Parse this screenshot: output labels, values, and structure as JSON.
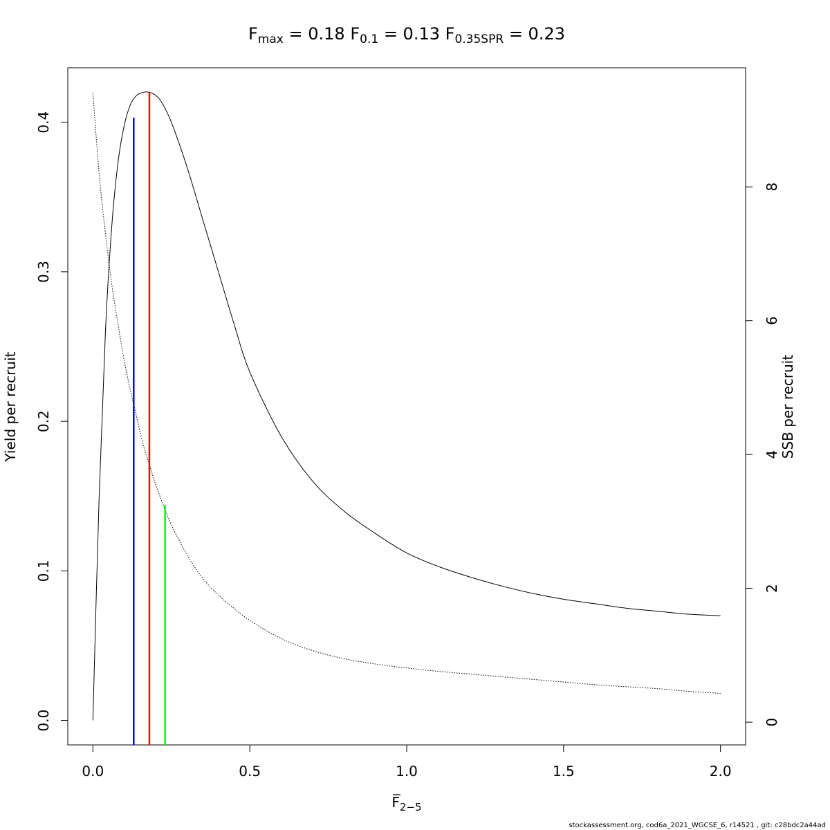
{
  "title": {
    "fmax": {
      "symbol": "F",
      "sub": "max",
      "value": "= 0.18"
    },
    "f01": {
      "symbol": "F",
      "sub": "0.1",
      "value": "= 0.13"
    },
    "fspr": {
      "symbol": "F",
      "sub": "0.35SPR",
      "value": "= 0.23"
    }
  },
  "footer": "stockassessment.org, cod6a_2021_WGCSE_6, r14521 , git: c28bdc2a44ad",
  "chart_data": {
    "type": "line",
    "xlabel": {
      "symbol": "F",
      "sub": "2−5"
    },
    "ylabel": "Yield per recruit",
    "y2label": "SSB per recruit",
    "xlim": [
      -0.08,
      2.08
    ],
    "ylim": [
      -0.0164,
      0.4364
    ],
    "y2lim": [
      -0.34,
      9.78
    ],
    "xticks": [
      0.0,
      0.5,
      1.0,
      1.5,
      2.0
    ],
    "xtick_labels": [
      "0.0",
      "0.5",
      "1.0",
      "1.5",
      "2.0"
    ],
    "yticks": [
      0.0,
      0.1,
      0.2,
      0.3,
      0.4
    ],
    "ytick_labels": [
      "0.0",
      "0.1",
      "0.2",
      "0.3",
      "0.4"
    ],
    "y2ticks": [
      0,
      2,
      4,
      6,
      8
    ],
    "y2tick_labels": [
      "0",
      "2",
      "4",
      "6",
      "8"
    ],
    "grid": false,
    "series": [
      {
        "axis": "left",
        "style": "solid",
        "color": "#000000",
        "x": [
          0,
          0.02,
          0.04,
          0.06,
          0.08,
          0.1,
          0.12,
          0.14,
          0.16,
          0.18,
          0.2,
          0.22,
          0.25,
          0.3,
          0.35,
          0.4,
          0.45,
          0.5,
          0.6,
          0.7,
          0.8,
          0.9,
          1.0,
          1.1,
          1.2,
          1.3,
          1.4,
          1.5,
          1.6,
          1.7,
          1.8,
          1.9,
          2.0
        ],
        "y": [
          0.0,
          0.15,
          0.26,
          0.33,
          0.373,
          0.398,
          0.412,
          0.418,
          0.42,
          0.42,
          0.418,
          0.413,
          0.4,
          0.37,
          0.335,
          0.3,
          0.265,
          0.233,
          0.19,
          0.16,
          0.14,
          0.125,
          0.112,
          0.103,
          0.096,
          0.09,
          0.085,
          0.081,
          0.078,
          0.075,
          0.073,
          0.071,
          0.07
        ]
      },
      {
        "axis": "right",
        "style": "dotted",
        "color": "#000000",
        "x": [
          0,
          0.02,
          0.04,
          0.06,
          0.08,
          0.1,
          0.12,
          0.14,
          0.16,
          0.18,
          0.2,
          0.22,
          0.25,
          0.3,
          0.35,
          0.4,
          0.45,
          0.5,
          0.6,
          0.7,
          0.8,
          0.9,
          1.0,
          1.1,
          1.2,
          1.3,
          1.4,
          1.5,
          1.6,
          1.7,
          1.8,
          1.9,
          2.0
        ],
        "y": [
          9.4,
          8.2,
          7.3,
          6.55,
          5.95,
          5.4,
          4.95,
          4.55,
          4.15,
          3.85,
          3.55,
          3.3,
          2.95,
          2.5,
          2.15,
          1.9,
          1.7,
          1.52,
          1.25,
          1.07,
          0.95,
          0.87,
          0.81,
          0.76,
          0.72,
          0.68,
          0.64,
          0.6,
          0.56,
          0.53,
          0.5,
          0.46,
          0.43
        ]
      }
    ],
    "reference_lines": [
      {
        "label": "F0.1",
        "x": 0.13,
        "y_top": 0.403,
        "color": "#0000ff"
      },
      {
        "label": "Fmax",
        "x": 0.18,
        "y_top": 0.42,
        "color": "#ff0000"
      },
      {
        "label": "F0.35SPR",
        "x": 0.23,
        "y_top": 0.144,
        "color": "#00ff00"
      }
    ]
  }
}
